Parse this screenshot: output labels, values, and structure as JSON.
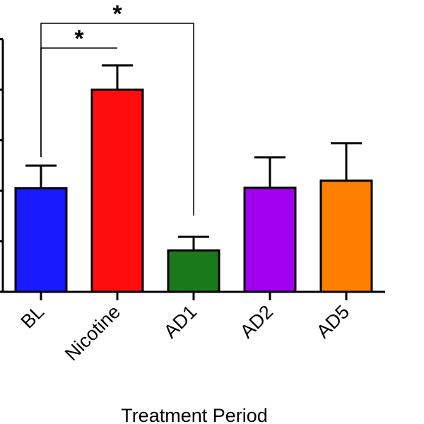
{
  "chart_data": {
    "type": "bar",
    "xlabel": "Treatment Period",
    "ylabel": "",
    "categories": [
      "BL",
      "Nicotine",
      "AD1",
      "AD2",
      "AD5"
    ],
    "values": [
      2.05,
      4.0,
      0.82,
      2.06,
      2.2
    ],
    "errors": [
      0.45,
      0.48,
      0.27,
      0.6,
      0.74
    ],
    "colors": [
      "#1a1aff",
      "#ff0d0d",
      "#1a7a1a",
      "#a000ee",
      "#ff8000"
    ],
    "ylim": [
      0,
      5
    ],
    "y_ticks": [
      0,
      1,
      2,
      3,
      4,
      5
    ],
    "grid": false,
    "significance": [
      {
        "from": "BL",
        "to": "Nicotine",
        "label": "*"
      },
      {
        "from": "BL",
        "to": "AD1",
        "label": "*"
      }
    ]
  }
}
